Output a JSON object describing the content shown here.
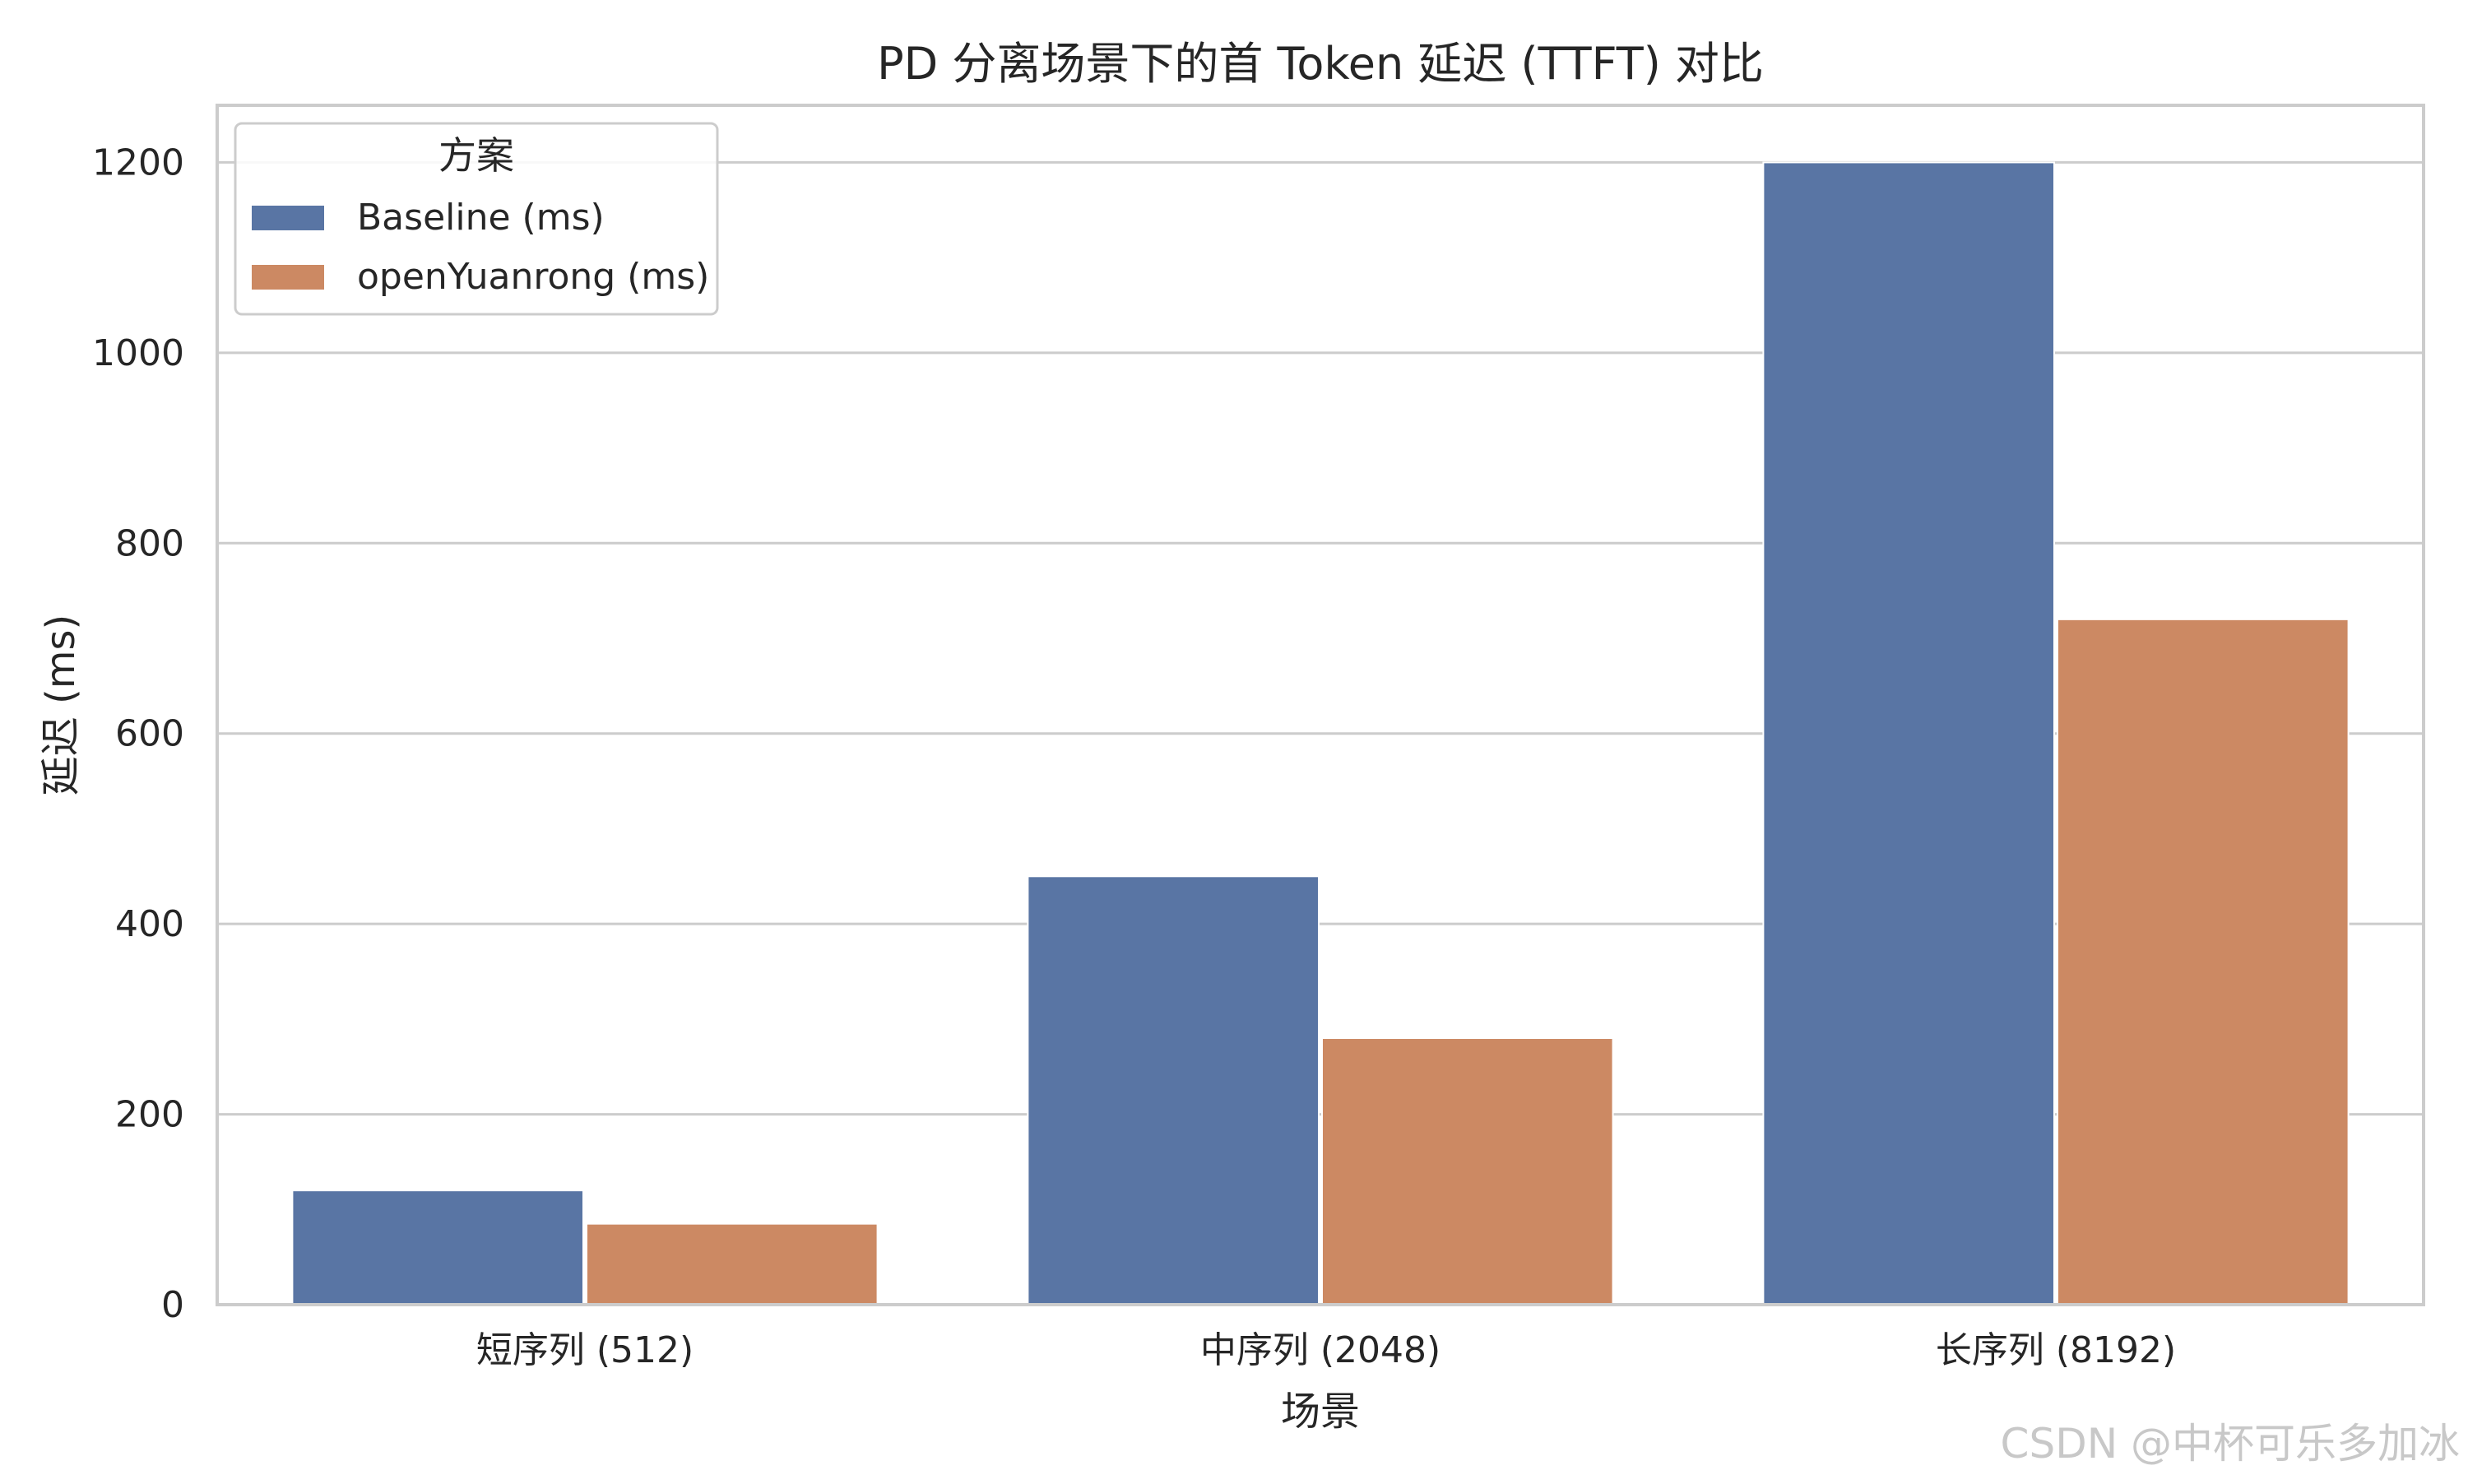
{
  "watermark": "CSDN @中杯可乐多加冰",
  "chart_data": {
    "type": "bar",
    "title": "PD 分离场景下的首 Token 延迟 (TTFT) 对比",
    "xlabel": "场景",
    "ylabel": "延迟 (ms)",
    "categories": [
      "短序列 (512)",
      "中序列 (2048)",
      "长序列 (8192)"
    ],
    "series": [
      {
        "name": "Baseline (ms)",
        "values": [
          120,
          450,
          1200
        ],
        "color": "#5975a4"
      },
      {
        "name": "openYuanrong (ms)",
        "values": [
          85,
          280,
          720
        ],
        "color": "#cc8963"
      }
    ],
    "ylim": [
      0,
      1260
    ],
    "yticks": [
      0,
      200,
      400,
      600,
      800,
      1000,
      1200
    ],
    "grid": true,
    "legend": {
      "title": "方案",
      "position": "top-left"
    }
  }
}
